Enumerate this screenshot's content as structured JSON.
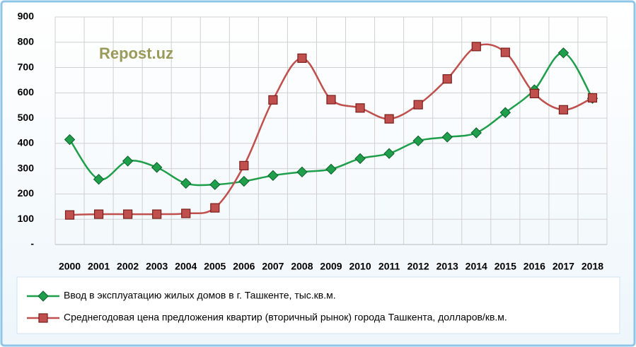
{
  "chart_data": {
    "type": "line",
    "annotation": "Repost.uz",
    "categories": [
      "2000",
      "2001",
      "2002",
      "2003",
      "2004",
      "2005",
      "2006",
      "2007",
      "2008",
      "2009",
      "2010",
      "2011",
      "2012",
      "2013",
      "2014",
      "2015",
      "2016",
      "2017",
      "2018"
    ],
    "series": [
      {
        "name": "Ввод в эксплуатацию жилых домов в  г. Ташкенте, тыс.кв.м.",
        "color": "#1f9e4b",
        "values": [
          415,
          258,
          330,
          305,
          242,
          237,
          250,
          273,
          287,
          298,
          340,
          360,
          410,
          425,
          442,
          522,
          612,
          758,
          578
        ]
      },
      {
        "name": "Среднегодовая цена предложения квартир (вторичный рынок) города Ташкента, долларов/кв.м.",
        "color": "#c0504d",
        "values": [
          117,
          120,
          120,
          120,
          123,
          145,
          312,
          572,
          737,
          573,
          540,
          497,
          553,
          655,
          783,
          760,
          597,
          533,
          580
        ]
      }
    ],
    "ylim": [
      0,
      900
    ],
    "yticks": [
      {
        "value": 0,
        "label": "-"
      },
      100,
      200,
      300,
      400,
      500,
      600,
      700,
      800,
      900
    ],
    "grid": true
  }
}
